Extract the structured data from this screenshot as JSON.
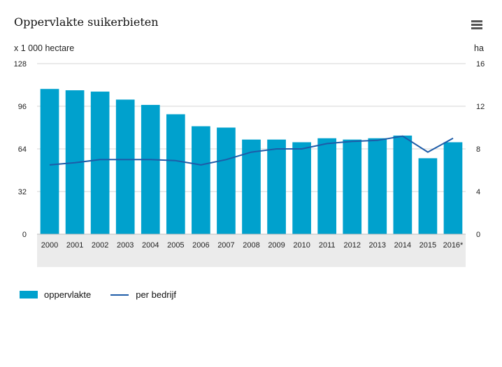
{
  "chart_data": {
    "type": "bar",
    "title": "Oppervlakte suikerbieten",
    "left_unit": "x 1 000 hectare",
    "right_unit": "ha",
    "categories": [
      "2000",
      "2001",
      "2002",
      "2003",
      "2004",
      "2005",
      "2006",
      "2007",
      "2008",
      "2009",
      "2010",
      "2011",
      "2012",
      "2013",
      "2014",
      "2015",
      "2016*"
    ],
    "left_ylim": [
      0,
      128
    ],
    "left_ticks": [
      "0",
      "32",
      "64",
      "96",
      "128"
    ],
    "right_ylim": [
      0,
      16
    ],
    "right_ticks": [
      "0",
      "4",
      "8",
      "12",
      "16"
    ],
    "series": [
      {
        "name": "oppervlakte",
        "type": "bar",
        "axis": "left",
        "color": "#00a1cd",
        "values": [
          109,
          108,
          107,
          101,
          97,
          90,
          81,
          80,
          71,
          71,
          69,
          72,
          71,
          72,
          74,
          57,
          69
        ]
      },
      {
        "name": "per bedrijf",
        "type": "line",
        "axis": "right",
        "color": "#1d5ca8",
        "values": [
          6.5,
          6.7,
          7.0,
          7.0,
          7.0,
          6.9,
          6.5,
          7.0,
          7.7,
          8.0,
          8.0,
          8.5,
          8.7,
          8.8,
          9.2,
          7.7,
          9.0
        ]
      }
    ],
    "grid": true,
    "legend": "bottom-left"
  },
  "menu": {
    "icon": "hamburger-icon"
  }
}
